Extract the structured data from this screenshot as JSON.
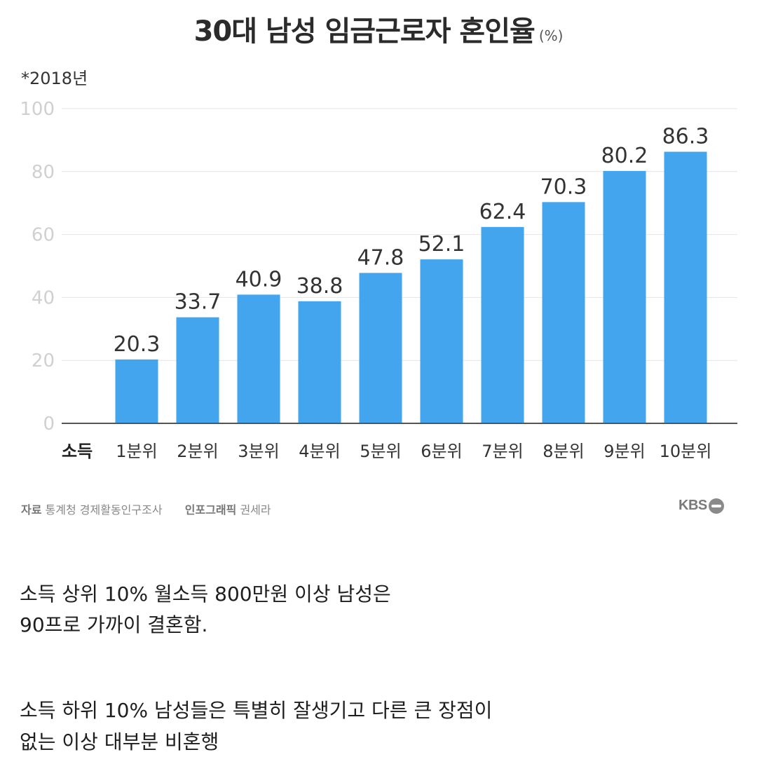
{
  "header": {
    "title": "30대 남성 임금근로자 혼인율",
    "unit": "(%)",
    "subtitle": "*2018년"
  },
  "chart_data": {
    "type": "bar",
    "title": "30대 남성 임금근로자 혼인율",
    "xlabel": "소득",
    "ylabel": "",
    "categories": [
      "1분위",
      "2분위",
      "3분위",
      "4분위",
      "5분위",
      "6분위",
      "7분위",
      "8분위",
      "9분위",
      "10분위"
    ],
    "values": [
      20.3,
      33.7,
      40.9,
      38.8,
      47.8,
      52.1,
      62.4,
      70.3,
      80.2,
      86.3
    ],
    "value_labels": [
      "20.3",
      "33.7",
      "40.9",
      "38.8",
      "47.8",
      "52.1",
      "62.4",
      "70.3",
      "80.2",
      "86.3"
    ],
    "yticks": [
      0,
      20,
      40,
      60,
      80,
      100
    ],
    "ylim": [
      0,
      100
    ],
    "grid": true,
    "bar_color": "#42a5ed"
  },
  "source": {
    "label1": "자료",
    "text1": "통계청 경제활동인구조사",
    "label2": "인포그래픽",
    "text2": "권세라",
    "logo": "KBS"
  },
  "post": {
    "line1": "소득 상위 10% 월소득 800만원 이상 남성은",
    "line2": "90프로 가까이 결혼함.",
    "line3": "소득 하위 10% 남성들은 특별히 잘생기고 다른 큰 장점이",
    "line4": "없는 이상 대부분 비혼행"
  }
}
